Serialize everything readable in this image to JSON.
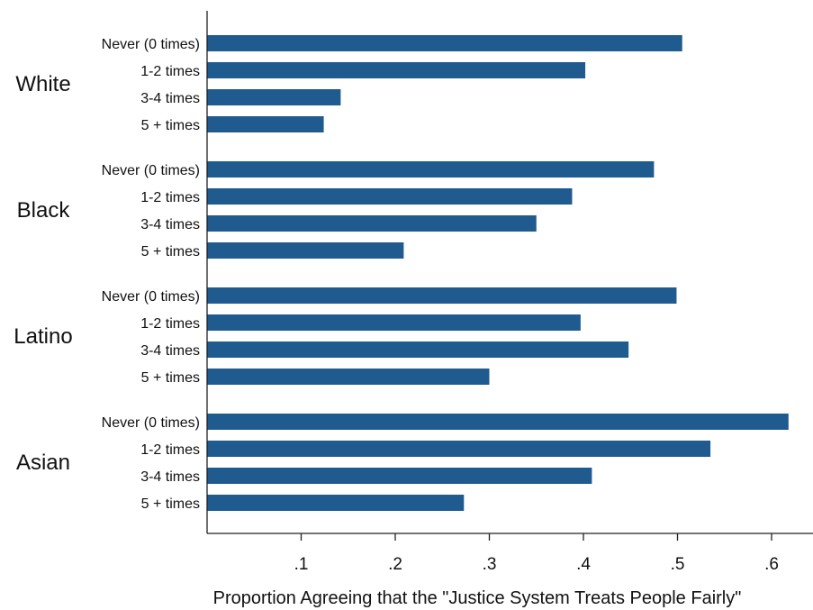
{
  "chart_data": {
    "type": "bar",
    "orientation": "horizontal",
    "title": "",
    "xlabel": "Proportion Agreeing that the \"Justice System Treats People Fairly\"",
    "ylabel": "",
    "xlim": [
      0,
      0.63
    ],
    "x_ticks": [
      0.1,
      0.2,
      0.3,
      0.4,
      0.5,
      0.6
    ],
    "x_tick_labels": [
      ".1",
      ".2",
      ".3",
      ".4",
      ".5",
      ".6"
    ],
    "grid": false,
    "bar_color": "#1f5b8e",
    "groups": [
      {
        "name": "White",
        "categories": [
          "Never (0 times)",
          "1-2 times",
          "3-4 times",
          "5 + times"
        ],
        "values": [
          0.505,
          0.402,
          0.142,
          0.124
        ]
      },
      {
        "name": "Black",
        "categories": [
          "Never (0 times)",
          "1-2 times",
          "3-4 times",
          "5 + times"
        ],
        "values": [
          0.475,
          0.388,
          0.35,
          0.209
        ]
      },
      {
        "name": "Latino",
        "categories": [
          "Never (0 times)",
          "1-2 times",
          "3-4 times",
          "5 + times"
        ],
        "values": [
          0.499,
          0.397,
          0.448,
          0.3
        ]
      },
      {
        "name": "Asian",
        "categories": [
          "Never (0 times)",
          "1-2 times",
          "3-4 times",
          "5 + times"
        ],
        "values": [
          0.618,
          0.535,
          0.409,
          0.273
        ]
      }
    ]
  }
}
